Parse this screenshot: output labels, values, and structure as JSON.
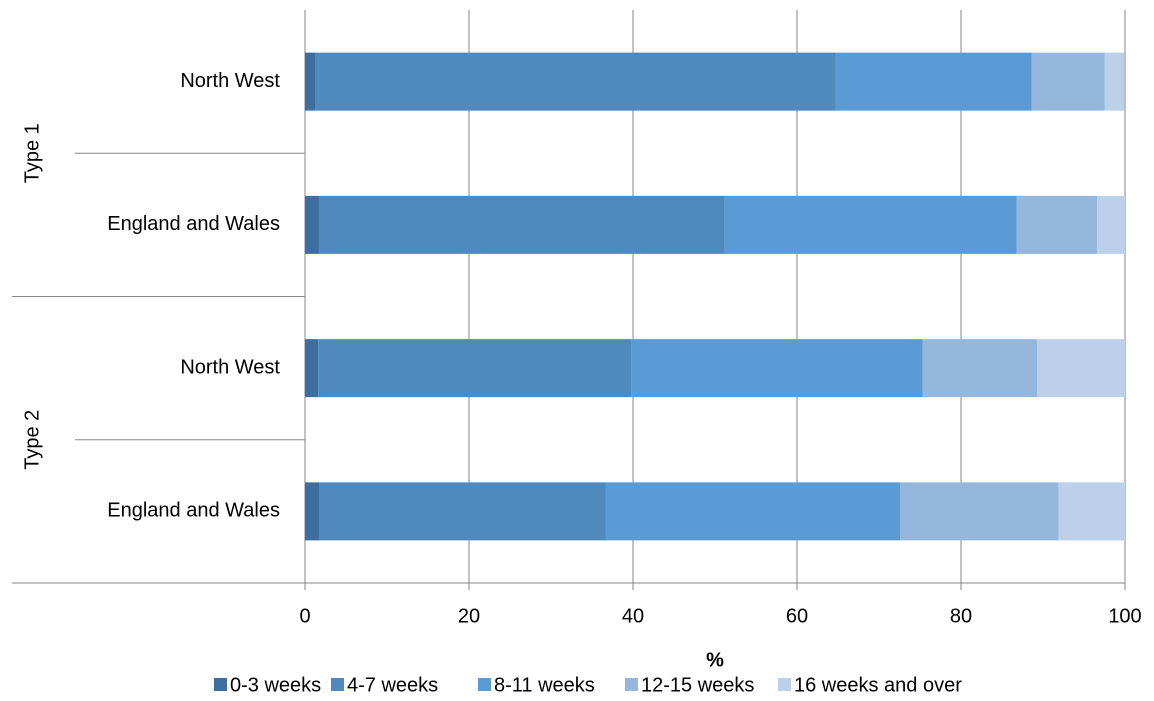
{
  "chart_data": {
    "type": "stacked-barh",
    "groups": [
      {
        "name": "Type 1",
        "categories": [
          "North West",
          "England and Wales"
        ]
      },
      {
        "name": "Type 2",
        "categories": [
          "North West",
          "England and Wales"
        ]
      }
    ],
    "series": [
      {
        "name": "0-3 weeks",
        "color": "#3e6e9f",
        "values": [
          1.3,
          1.7,
          1.6,
          1.8
        ]
      },
      {
        "name": "4-7 weeks",
        "color": "#4f89bd",
        "values": [
          63.4,
          49.5,
          38.2,
          34.9
        ]
      },
      {
        "name": "8-11 weeks",
        "color": "#5b9bd5",
        "values": [
          23.9,
          35.6,
          35.5,
          35.9
        ]
      },
      {
        "name": "12-15 weeks",
        "color": "#95b6dd",
        "values": [
          8.9,
          9.8,
          14.0,
          19.3
        ]
      },
      {
        "name": "16 weeks and over",
        "color": "#bcd0ea",
        "values": [
          2.4,
          3.4,
          10.7,
          8.1
        ]
      }
    ],
    "xlabel": "%",
    "xlim": [
      0,
      100
    ],
    "xticks": [
      0,
      20,
      40,
      60,
      80,
      100
    ],
    "grid": true,
    "legend": "bottom"
  }
}
